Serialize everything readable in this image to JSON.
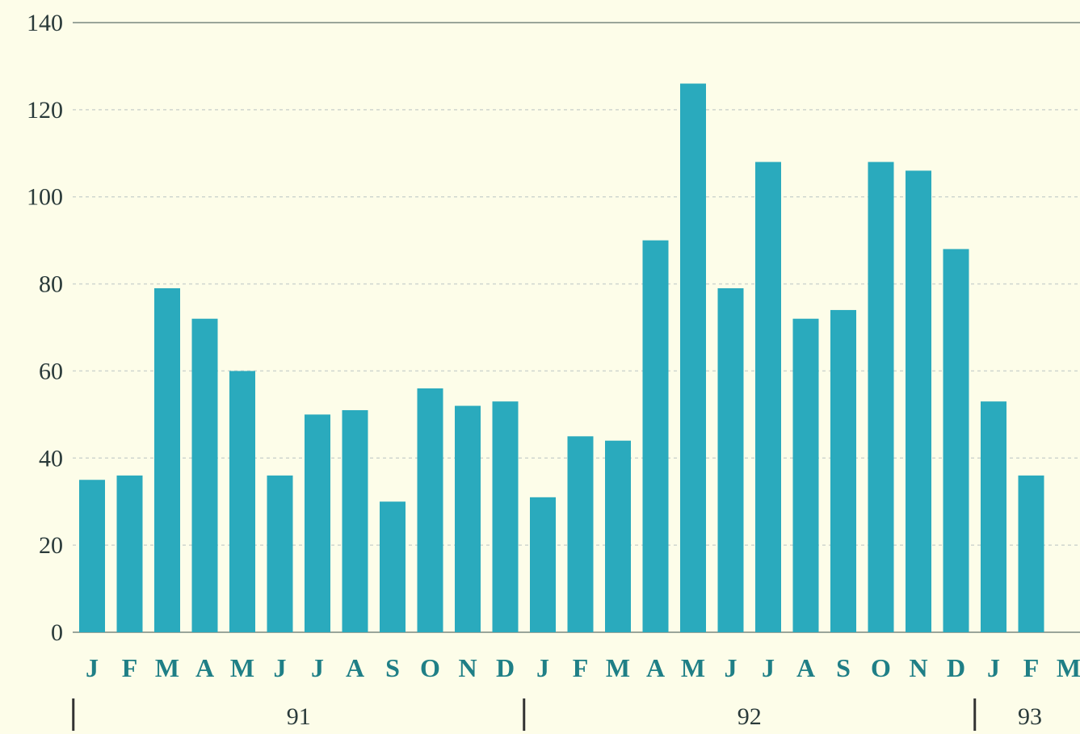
{
  "chart_data": {
    "type": "bar",
    "title": "",
    "xlabel": "",
    "ylabel": "",
    "ylim": [
      0,
      140
    ],
    "yticks": [
      0,
      20,
      40,
      60,
      80,
      100,
      120,
      140
    ],
    "grid": true,
    "categories": [
      "J",
      "F",
      "M",
      "A",
      "M",
      "J",
      "J",
      "A",
      "S",
      "O",
      "N",
      "D",
      "J",
      "F",
      "M",
      "A",
      "M",
      "J",
      "J",
      "A",
      "S",
      "O",
      "N",
      "D",
      "J",
      "F",
      "M"
    ],
    "values": [
      35,
      36,
      79,
      72,
      60,
      36,
      50,
      51,
      30,
      56,
      52,
      53,
      31,
      45,
      44,
      90,
      126,
      79,
      108,
      72,
      74,
      108,
      106,
      88,
      53,
      36,
      0
    ],
    "groups": [
      {
        "label": "91",
        "start": 0,
        "count": 12
      },
      {
        "label": "92",
        "start": 12,
        "count": 12
      },
      {
        "label": "93",
        "start": 24,
        "count": 3
      }
    ],
    "colors": {
      "bar": "#2aaabd",
      "background": "#fdfde9"
    }
  }
}
